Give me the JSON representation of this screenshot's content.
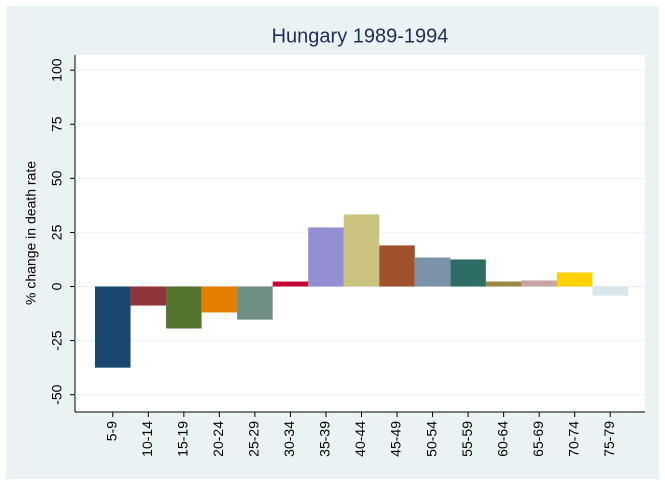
{
  "chart_data": {
    "type": "bar",
    "title": "Hungary 1989-1994",
    "y_label": "% change in death rate",
    "categories": [
      "5-9",
      "10-14",
      "15-19",
      "20-24",
      "25-29",
      "30-34",
      "35-39",
      "40-44",
      "45-49",
      "50-54",
      "55-59",
      "60-64",
      "65-69",
      "70-74",
      "75-79"
    ],
    "values": [
      -37.5,
      -8.8,
      -19.4,
      -12,
      -15.3,
      2.3,
      27.3,
      33.3,
      19,
      13.4,
      12.5,
      2.3,
      2.8,
      6.5,
      -4.2
    ],
    "colors": [
      "#1a476f",
      "#90353b",
      "#55752f",
      "#e37e00",
      "#6e8e84",
      "#c10534",
      "#938dd2",
      "#cac27e",
      "#a0522d",
      "#7b92a8",
      "#2d6d66",
      "#9c8847",
      "#c8a3a3",
      "#ffd200",
      "#d9e6eb"
    ],
    "ylim": [
      -58,
      107
    ],
    "yticks": [
      -50,
      -25,
      0,
      25,
      50,
      75,
      100
    ],
    "grid": true
  }
}
